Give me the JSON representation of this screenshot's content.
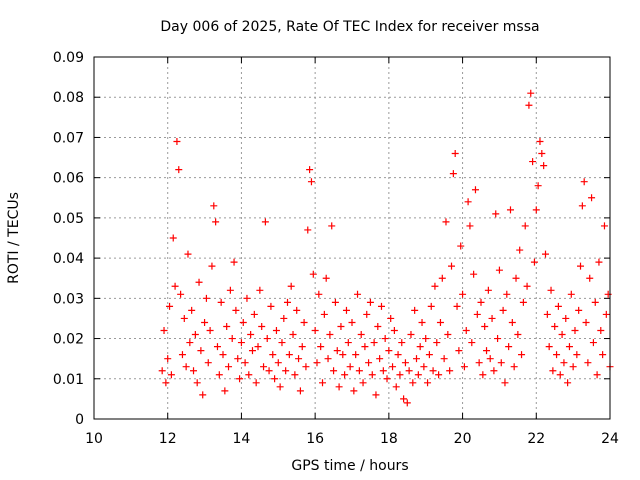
{
  "chart_data": {
    "type": "scatter",
    "title": "Day 006 of 2025, Rate Of TEC Index for receiver mssa",
    "xlabel": "GPS time / hours",
    "ylabel": "ROTI / TECUs",
    "xlim": [
      10,
      24
    ],
    "ylim": [
      0,
      0.09
    ],
    "x_ticks": [
      10,
      12,
      14,
      16,
      18,
      20,
      22,
      24
    ],
    "y_ticks": [
      0,
      0.01,
      0.02,
      0.03,
      0.04,
      0.05,
      0.06,
      0.07,
      0.08,
      0.09
    ],
    "x_tick_labels": [
      "10",
      "12",
      "14",
      "16",
      "18",
      "20",
      "22",
      "24"
    ],
    "y_tick_labels": [
      "0",
      "0.01",
      "0.02",
      "0.03",
      "0.04",
      "0.05",
      "0.06",
      "0.07",
      "0.08",
      "0.09"
    ],
    "grid": true,
    "legend": "none",
    "marker": "+",
    "series": [
      {
        "name": "ROTI",
        "color": "#ff0000",
        "points": [
          [
            11.85,
            0.012
          ],
          [
            11.9,
            0.022
          ],
          [
            11.95,
            0.009
          ],
          [
            12.0,
            0.015
          ],
          [
            12.05,
            0.028
          ],
          [
            12.1,
            0.011
          ],
          [
            12.15,
            0.045
          ],
          [
            12.2,
            0.033
          ],
          [
            12.25,
            0.069
          ],
          [
            12.3,
            0.062
          ],
          [
            12.35,
            0.031
          ],
          [
            12.4,
            0.016
          ],
          [
            12.45,
            0.025
          ],
          [
            12.5,
            0.013
          ],
          [
            12.55,
            0.041
          ],
          [
            12.6,
            0.019
          ],
          [
            12.65,
            0.027
          ],
          [
            12.7,
            0.012
          ],
          [
            12.75,
            0.021
          ],
          [
            12.8,
            0.009
          ],
          [
            12.85,
            0.034
          ],
          [
            12.9,
            0.017
          ],
          [
            12.95,
            0.006
          ],
          [
            13.0,
            0.024
          ],
          [
            13.05,
            0.03
          ],
          [
            13.1,
            0.014
          ],
          [
            13.15,
            0.022
          ],
          [
            13.2,
            0.038
          ],
          [
            13.25,
            0.053
          ],
          [
            13.3,
            0.049
          ],
          [
            13.35,
            0.018
          ],
          [
            13.4,
            0.011
          ],
          [
            13.45,
            0.029
          ],
          [
            13.5,
            0.016
          ],
          [
            13.55,
            0.007
          ],
          [
            13.6,
            0.023
          ],
          [
            13.65,
            0.013
          ],
          [
            13.7,
            0.032
          ],
          [
            13.75,
            0.02
          ],
          [
            13.8,
            0.039
          ],
          [
            13.85,
            0.027
          ],
          [
            13.9,
            0.015
          ],
          [
            13.95,
            0.01
          ],
          [
            14.0,
            0.019
          ],
          [
            14.05,
            0.024
          ],
          [
            14.1,
            0.014
          ],
          [
            14.15,
            0.03
          ],
          [
            14.2,
            0.011
          ],
          [
            14.25,
            0.021
          ],
          [
            14.3,
            0.017
          ],
          [
            14.35,
            0.026
          ],
          [
            14.4,
            0.009
          ],
          [
            14.45,
            0.018
          ],
          [
            14.5,
            0.032
          ],
          [
            14.55,
            0.023
          ],
          [
            14.6,
            0.013
          ],
          [
            14.65,
            0.049
          ],
          [
            14.7,
            0.02
          ],
          [
            14.75,
            0.012
          ],
          [
            14.8,
            0.028
          ],
          [
            14.85,
            0.016
          ],
          [
            14.9,
            0.01
          ],
          [
            14.95,
            0.022
          ],
          [
            15.0,
            0.014
          ],
          [
            15.05,
            0.008
          ],
          [
            15.1,
            0.019
          ],
          [
            15.15,
            0.025
          ],
          [
            15.2,
            0.012
          ],
          [
            15.25,
            0.029
          ],
          [
            15.3,
            0.016
          ],
          [
            15.35,
            0.033
          ],
          [
            15.4,
            0.021
          ],
          [
            15.45,
            0.011
          ],
          [
            15.5,
            0.027
          ],
          [
            15.55,
            0.015
          ],
          [
            15.6,
            0.007
          ],
          [
            15.65,
            0.018
          ],
          [
            15.7,
            0.024
          ],
          [
            15.75,
            0.013
          ],
          [
            15.8,
            0.047
          ],
          [
            15.85,
            0.062
          ],
          [
            15.9,
            0.059
          ],
          [
            15.95,
            0.036
          ],
          [
            16.0,
            0.022
          ],
          [
            16.05,
            0.014
          ],
          [
            16.1,
            0.031
          ],
          [
            16.15,
            0.018
          ],
          [
            16.2,
            0.009
          ],
          [
            16.25,
            0.026
          ],
          [
            16.3,
            0.035
          ],
          [
            16.35,
            0.015
          ],
          [
            16.4,
            0.021
          ],
          [
            16.45,
            0.048
          ],
          [
            16.5,
            0.012
          ],
          [
            16.55,
            0.029
          ],
          [
            16.6,
            0.017
          ],
          [
            16.65,
            0.008
          ],
          [
            16.7,
            0.023
          ],
          [
            16.75,
            0.016
          ],
          [
            16.8,
            0.011
          ],
          [
            16.85,
            0.027
          ],
          [
            16.9,
            0.019
          ],
          [
            16.95,
            0.013
          ],
          [
            17.0,
            0.024
          ],
          [
            17.05,
            0.007
          ],
          [
            17.1,
            0.016
          ],
          [
            17.15,
            0.031
          ],
          [
            17.2,
            0.012
          ],
          [
            17.25,
            0.021
          ],
          [
            17.3,
            0.009
          ],
          [
            17.35,
            0.018
          ],
          [
            17.4,
            0.026
          ],
          [
            17.45,
            0.014
          ],
          [
            17.5,
            0.029
          ],
          [
            17.55,
            0.011
          ],
          [
            17.6,
            0.019
          ],
          [
            17.65,
            0.006
          ],
          [
            17.7,
            0.023
          ],
          [
            17.75,
            0.015
          ],
          [
            17.8,
            0.028
          ],
          [
            17.85,
            0.012
          ],
          [
            17.9,
            0.02
          ],
          [
            17.95,
            0.01
          ],
          [
            18.0,
            0.017
          ],
          [
            18.05,
            0.025
          ],
          [
            18.1,
            0.013
          ],
          [
            18.15,
            0.022
          ],
          [
            18.2,
            0.008
          ],
          [
            18.25,
            0.016
          ],
          [
            18.3,
            0.011
          ],
          [
            18.35,
            0.019
          ],
          [
            18.4,
            0.005
          ],
          [
            18.45,
            0.014
          ],
          [
            18.5,
            0.004
          ],
          [
            18.55,
            0.012
          ],
          [
            18.6,
            0.021
          ],
          [
            18.65,
            0.009
          ],
          [
            18.7,
            0.027
          ],
          [
            18.75,
            0.015
          ],
          [
            18.8,
            0.011
          ],
          [
            18.85,
            0.018
          ],
          [
            18.9,
            0.024
          ],
          [
            18.95,
            0.013
          ],
          [
            19.0,
            0.02
          ],
          [
            19.05,
            0.009
          ],
          [
            19.1,
            0.016
          ],
          [
            19.15,
            0.028
          ],
          [
            19.2,
            0.012
          ],
          [
            19.25,
            0.033
          ],
          [
            19.3,
            0.019
          ],
          [
            19.35,
            0.011
          ],
          [
            19.4,
            0.024
          ],
          [
            19.45,
            0.035
          ],
          [
            19.5,
            0.015
          ],
          [
            19.55,
            0.049
          ],
          [
            19.6,
            0.021
          ],
          [
            19.65,
            0.012
          ],
          [
            19.7,
            0.038
          ],
          [
            19.75,
            0.061
          ],
          [
            19.8,
            0.066
          ],
          [
            19.85,
            0.028
          ],
          [
            19.9,
            0.017
          ],
          [
            19.95,
            0.043
          ],
          [
            20.0,
            0.031
          ],
          [
            20.05,
            0.013
          ],
          [
            20.1,
            0.022
          ],
          [
            20.15,
            0.054
          ],
          [
            20.2,
            0.048
          ],
          [
            20.25,
            0.019
          ],
          [
            20.3,
            0.036
          ],
          [
            20.35,
            0.057
          ],
          [
            20.4,
            0.026
          ],
          [
            20.45,
            0.014
          ],
          [
            20.5,
            0.029
          ],
          [
            20.55,
            0.011
          ],
          [
            20.6,
            0.023
          ],
          [
            20.65,
            0.017
          ],
          [
            20.7,
            0.032
          ],
          [
            20.75,
            0.015
          ],
          [
            20.8,
            0.025
          ],
          [
            20.85,
            0.012
          ],
          [
            20.9,
            0.051
          ],
          [
            20.95,
            0.02
          ],
          [
            21.0,
            0.037
          ],
          [
            21.05,
            0.014
          ],
          [
            21.1,
            0.027
          ],
          [
            21.15,
            0.009
          ],
          [
            21.2,
            0.031
          ],
          [
            21.25,
            0.018
          ],
          [
            21.3,
            0.052
          ],
          [
            21.35,
            0.024
          ],
          [
            21.4,
            0.013
          ],
          [
            21.45,
            0.035
          ],
          [
            21.5,
            0.021
          ],
          [
            21.55,
            0.042
          ],
          [
            21.6,
            0.016
          ],
          [
            21.65,
            0.029
          ],
          [
            21.7,
            0.048
          ],
          [
            21.75,
            0.033
          ],
          [
            21.8,
            0.078
          ],
          [
            21.85,
            0.081
          ],
          [
            21.9,
            0.064
          ],
          [
            21.95,
            0.039
          ],
          [
            22.0,
            0.052
          ],
          [
            22.05,
            0.058
          ],
          [
            22.1,
            0.069
          ],
          [
            22.15,
            0.066
          ],
          [
            22.2,
            0.063
          ],
          [
            22.25,
            0.041
          ],
          [
            22.3,
            0.026
          ],
          [
            22.35,
            0.018
          ],
          [
            22.4,
            0.032
          ],
          [
            22.45,
            0.012
          ],
          [
            22.5,
            0.023
          ],
          [
            22.55,
            0.016
          ],
          [
            22.6,
            0.028
          ],
          [
            22.65,
            0.011
          ],
          [
            22.7,
            0.021
          ],
          [
            22.75,
            0.014
          ],
          [
            22.8,
            0.025
          ],
          [
            22.85,
            0.009
          ],
          [
            22.9,
            0.018
          ],
          [
            22.95,
            0.031
          ],
          [
            23.0,
            0.013
          ],
          [
            23.05,
            0.022
          ],
          [
            23.1,
            0.016
          ],
          [
            23.15,
            0.027
          ],
          [
            23.2,
            0.038
          ],
          [
            23.25,
            0.053
          ],
          [
            23.3,
            0.059
          ],
          [
            23.35,
            0.024
          ],
          [
            23.4,
            0.014
          ],
          [
            23.45,
            0.035
          ],
          [
            23.5,
            0.055
          ],
          [
            23.55,
            0.019
          ],
          [
            23.6,
            0.029
          ],
          [
            23.65,
            0.011
          ],
          [
            23.7,
            0.039
          ],
          [
            23.75,
            0.022
          ],
          [
            23.8,
            0.016
          ],
          [
            23.85,
            0.048
          ],
          [
            23.9,
            0.026
          ],
          [
            23.95,
            0.031
          ],
          [
            24.0,
            0.013
          ]
        ]
      }
    ]
  }
}
